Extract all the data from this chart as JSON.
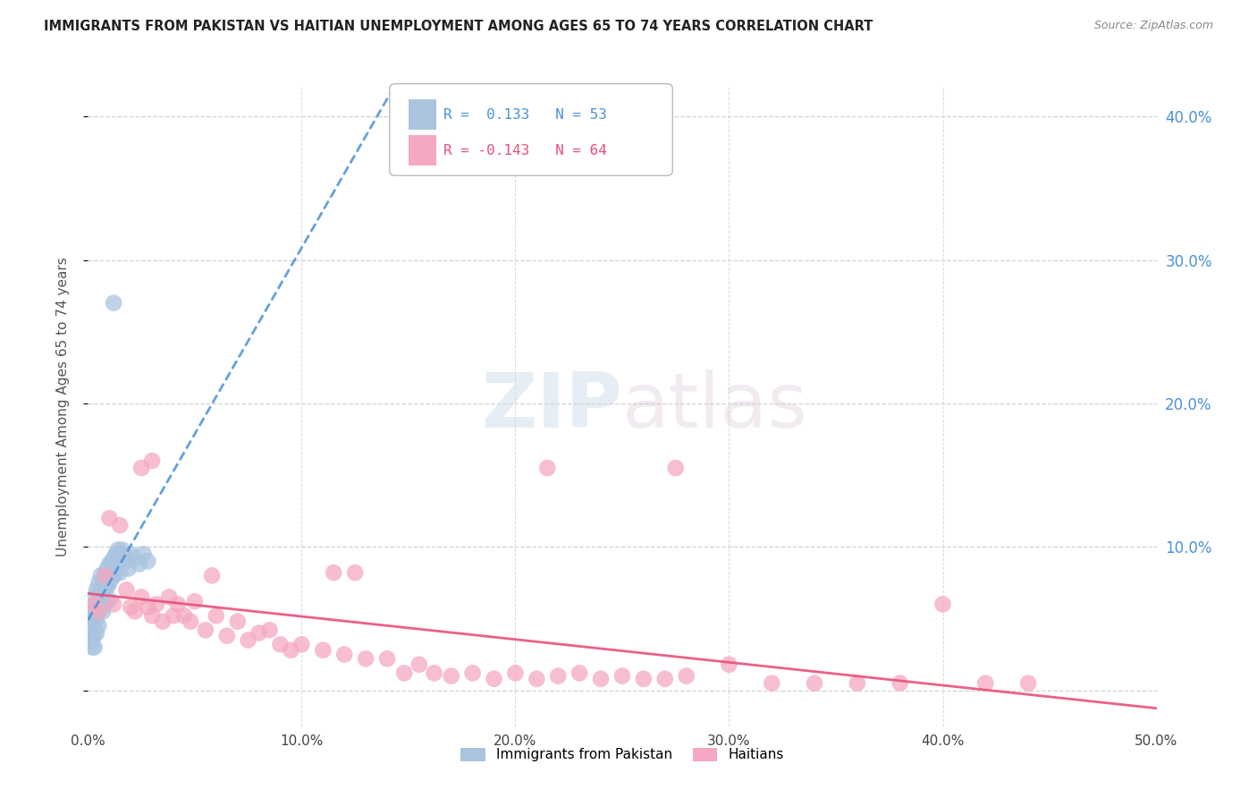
{
  "title": "IMMIGRANTS FROM PAKISTAN VS HAITIAN UNEMPLOYMENT AMONG AGES 65 TO 74 YEARS CORRELATION CHART",
  "source": "Source: ZipAtlas.com",
  "ylabel": "Unemployment Among Ages 65 to 74 years",
  "xlim": [
    0,
    0.5
  ],
  "ylim": [
    -0.025,
    0.42
  ],
  "background_color": "#ffffff",
  "grid_color": "#cccccc",
  "pakistan_color": "#aac4e0",
  "haitian_color": "#f5a8c0",
  "pakistan_line_color": "#4a90d9",
  "haitian_line_color": "#e8507a",
  "pak_trend_start": 0.048,
  "pak_trend_end": 0.268,
  "hai_trend_start": 0.058,
  "hai_trend_end": 0.04,
  "pak_x": [
    0.001,
    0.001,
    0.001,
    0.002,
    0.002,
    0.002,
    0.002,
    0.003,
    0.003,
    0.003,
    0.003,
    0.003,
    0.004,
    0.004,
    0.004,
    0.004,
    0.005,
    0.005,
    0.005,
    0.005,
    0.006,
    0.006,
    0.006,
    0.007,
    0.007,
    0.007,
    0.008,
    0.008,
    0.008,
    0.009,
    0.009,
    0.01,
    0.01,
    0.01,
    0.011,
    0.011,
    0.012,
    0.012,
    0.013,
    0.013,
    0.014,
    0.015,
    0.015,
    0.016,
    0.017,
    0.018,
    0.019,
    0.02,
    0.022,
    0.024,
    0.026,
    0.028,
    0.012
  ],
  "pak_y": [
    0.05,
    0.04,
    0.035,
    0.055,
    0.048,
    0.038,
    0.03,
    0.065,
    0.055,
    0.045,
    0.038,
    0.03,
    0.07,
    0.06,
    0.05,
    0.04,
    0.075,
    0.065,
    0.055,
    0.045,
    0.08,
    0.068,
    0.058,
    0.075,
    0.065,
    0.055,
    0.082,
    0.07,
    0.06,
    0.085,
    0.072,
    0.088,
    0.075,
    0.063,
    0.09,
    0.078,
    0.092,
    0.08,
    0.095,
    0.082,
    0.098,
    0.095,
    0.082,
    0.098,
    0.092,
    0.09,
    0.085,
    0.095,
    0.092,
    0.088,
    0.095,
    0.09,
    0.27
  ],
  "hai_x": [
    0.003,
    0.005,
    0.008,
    0.01,
    0.012,
    0.015,
    0.018,
    0.02,
    0.022,
    0.025,
    0.028,
    0.03,
    0.032,
    0.035,
    0.038,
    0.04,
    0.042,
    0.045,
    0.048,
    0.05,
    0.055,
    0.058,
    0.06,
    0.065,
    0.07,
    0.075,
    0.08,
    0.085,
    0.09,
    0.095,
    0.1,
    0.11,
    0.115,
    0.12,
    0.125,
    0.13,
    0.14,
    0.148,
    0.155,
    0.162,
    0.17,
    0.18,
    0.19,
    0.2,
    0.21,
    0.22,
    0.23,
    0.24,
    0.25,
    0.26,
    0.27,
    0.28,
    0.3,
    0.32,
    0.34,
    0.36,
    0.38,
    0.4,
    0.42,
    0.44,
    0.025,
    0.03,
    0.215,
    0.275
  ],
  "hai_y": [
    0.06,
    0.055,
    0.08,
    0.12,
    0.06,
    0.115,
    0.07,
    0.058,
    0.055,
    0.065,
    0.058,
    0.052,
    0.06,
    0.048,
    0.065,
    0.052,
    0.06,
    0.052,
    0.048,
    0.062,
    0.042,
    0.08,
    0.052,
    0.038,
    0.048,
    0.035,
    0.04,
    0.042,
    0.032,
    0.028,
    0.032,
    0.028,
    0.082,
    0.025,
    0.082,
    0.022,
    0.022,
    0.012,
    0.018,
    0.012,
    0.01,
    0.012,
    0.008,
    0.012,
    0.008,
    0.01,
    0.012,
    0.008,
    0.01,
    0.008,
    0.008,
    0.01,
    0.018,
    0.005,
    0.005,
    0.005,
    0.005,
    0.06,
    0.005,
    0.005,
    0.155,
    0.16,
    0.155,
    0.155
  ]
}
